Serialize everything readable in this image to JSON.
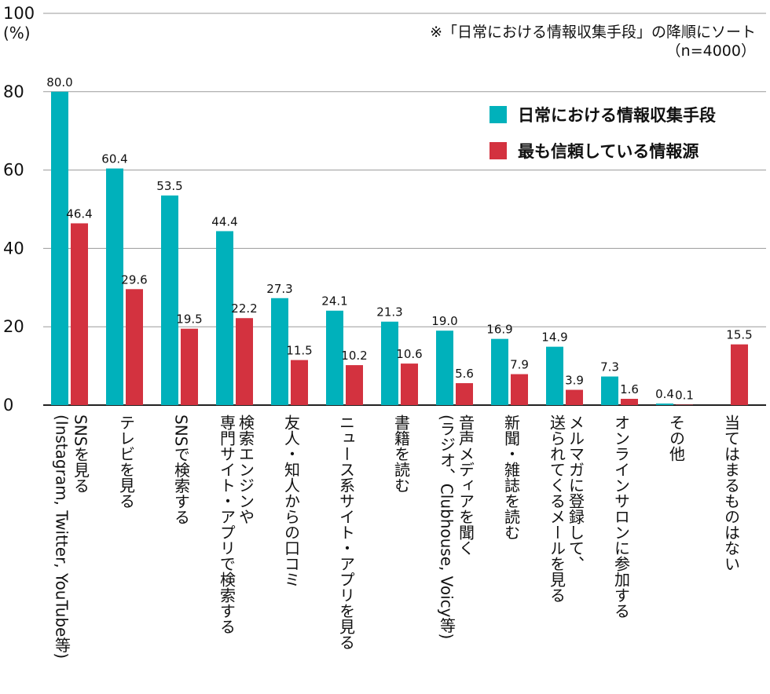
{
  "chart_data": {
    "type": "bar",
    "y_unit": "(%)",
    "note_lines": [
      "※「日常における情報収集手段」の降順にソート",
      "（n=4000）"
    ],
    "ylim": [
      0,
      100
    ],
    "yticks": [
      0,
      20,
      40,
      60,
      80,
      100
    ],
    "grid": true,
    "legend_position": "top-right",
    "categories": [
      "SNSを見る\n(Instagram, Twitter, YouTube等)",
      "テレビを見る",
      "SNSで検索する",
      "検索エンジンや\n専門サイト・アプリで検索する",
      "友人・知人からの口コミ",
      "ニュース系サイト・アプリを見る",
      "書籍を読む",
      "音声メディアを聞く\n(ラジオ、Clubhouse, Voicy等)",
      "新聞・雑誌を読む",
      "メルマガに登録して、\n送られてくるメールを見る",
      "オンラインサロンに参加する",
      "その他",
      "当てはまるものはない"
    ],
    "series": [
      {
        "name": "日常における情報収集手段",
        "color": "#00b1bb",
        "values": [
          80.0,
          60.4,
          53.5,
          44.4,
          27.3,
          24.1,
          21.3,
          19.0,
          16.9,
          14.9,
          7.3,
          0.4,
          null
        ],
        "labels": [
          "80.0",
          "60.4",
          "53.5",
          "44.4",
          "27.3",
          "24.1",
          "21.3",
          "19.0",
          "16.9",
          "14.9",
          "7.3",
          "0.4",
          ""
        ]
      },
      {
        "name": "最も信頼している情報源",
        "color": "#d3323f",
        "values": [
          46.4,
          29.6,
          19.5,
          22.2,
          11.5,
          10.2,
          10.6,
          5.6,
          7.9,
          3.9,
          1.6,
          0.1,
          15.5
        ],
        "labels": [
          "46.4",
          "29.6",
          "19.5",
          "22.2",
          "11.5",
          "10.2",
          "10.6",
          "5.6",
          "7.9",
          "3.9",
          "1.6",
          "0.1",
          "15.5"
        ]
      }
    ]
  }
}
